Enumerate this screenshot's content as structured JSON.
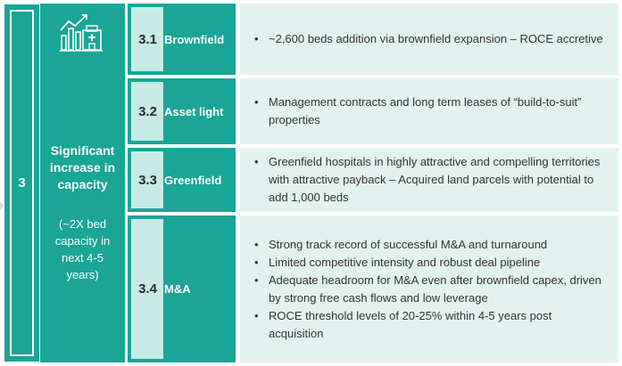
{
  "pillar": {
    "number": "3",
    "icon": "hospital-growth-chart-icon",
    "title_lines": [
      "Significant",
      "increase in",
      "capacity"
    ],
    "subtitle_lines": [
      "(~2X bed",
      "capacity in",
      "next 4-5",
      "years)"
    ]
  },
  "rows": [
    {
      "num": "3.1",
      "label": "Brownfield",
      "bullets": [
        "~2,600 beds addition via brownfield expansion – ROCE accretive"
      ]
    },
    {
      "num": "3.2",
      "label": "Asset light",
      "bullets": [
        "Management contracts and long term leases of “build-to-suit” properties"
      ]
    },
    {
      "num": "3.3",
      "label": "Greenfield",
      "bullets": [
        "Greenfield hospitals in highly attractive and compelling territories with attractive payback – Acquired land parcels with potential to add 1,000 beds"
      ]
    },
    {
      "num": "3.4",
      "label": "M&A",
      "bullets": [
        "Strong track record of successful M&A and turnaround",
        "Limited competitive intensity and robust deal pipeline",
        "Adequate headroom for M&A even after brownfield capex, driven by strong free cash flows and low leverage",
        "ROCE threshold levels of 20-25% within 4-5 years post acquisition"
      ]
    }
  ],
  "colors": {
    "teal": "#1aa597",
    "light_tile": "#c6ebe5",
    "desc_bg": "#e2f3ef",
    "text": "#333333"
  }
}
